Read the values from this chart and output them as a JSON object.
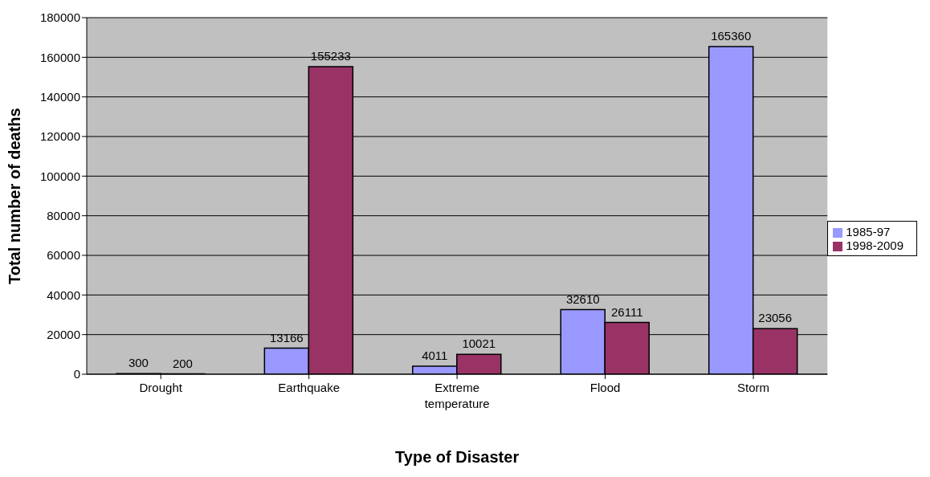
{
  "chart_data": {
    "type": "bar",
    "xlabel": "Type of Disaster",
    "ylabel": "Total number of deaths",
    "categories": [
      "Drought",
      "Earthquake",
      "Extreme temperature",
      "Flood",
      "Storm"
    ],
    "series": [
      {
        "name": "1985-97",
        "color": "#9999ff",
        "values": [
          300,
          13166,
          4011,
          32610,
          165360
        ]
      },
      {
        "name": "1998-2009",
        "color": "#993366",
        "values": [
          200,
          155233,
          10021,
          26111,
          23056
        ]
      }
    ],
    "ylim": [
      0,
      180000
    ],
    "yticks": [
      0,
      20000,
      40000,
      60000,
      80000,
      100000,
      120000,
      140000,
      160000,
      180000
    ],
    "grid": "y",
    "legend": "right",
    "data_labels": true
  }
}
